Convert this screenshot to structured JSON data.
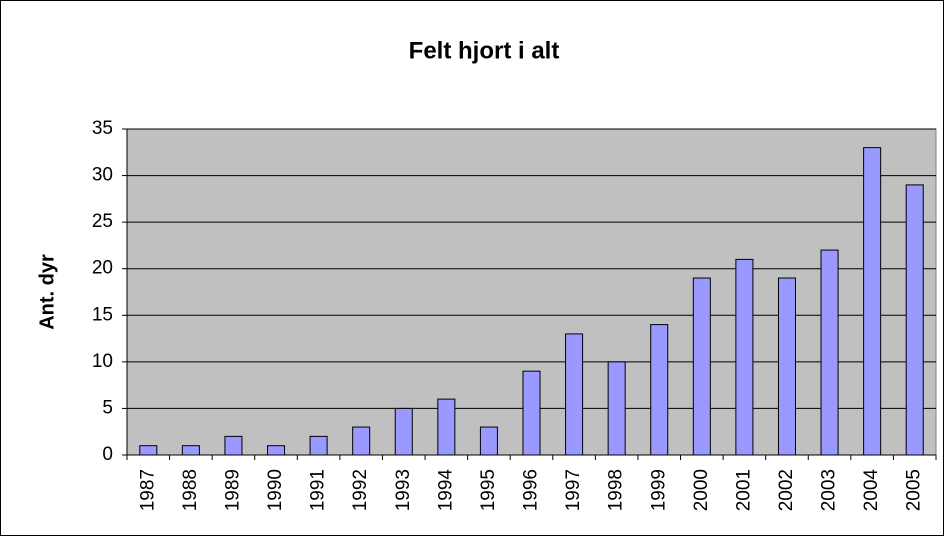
{
  "chart_data": {
    "type": "bar",
    "title": "Felt hjort i alt",
    "y_label": "Ant. dyr",
    "categories": [
      "1987",
      "1988",
      "1989",
      "1990",
      "1991",
      "1992",
      "1993",
      "1994",
      "1995",
      "1996",
      "1997",
      "1998",
      "1999",
      "2000",
      "2001",
      "2002",
      "2003",
      "2004",
      "2005"
    ],
    "values": [
      1,
      1,
      2,
      1,
      2,
      3,
      5,
      6,
      3,
      9,
      13,
      10,
      14,
      19,
      21,
      19,
      22,
      33,
      29
    ],
    "color": "#9999ff",
    "ylim": [
      0,
      35
    ],
    "yticks": [
      0,
      5,
      10,
      15,
      20,
      25,
      30,
      35
    ],
    "grid": true
  }
}
